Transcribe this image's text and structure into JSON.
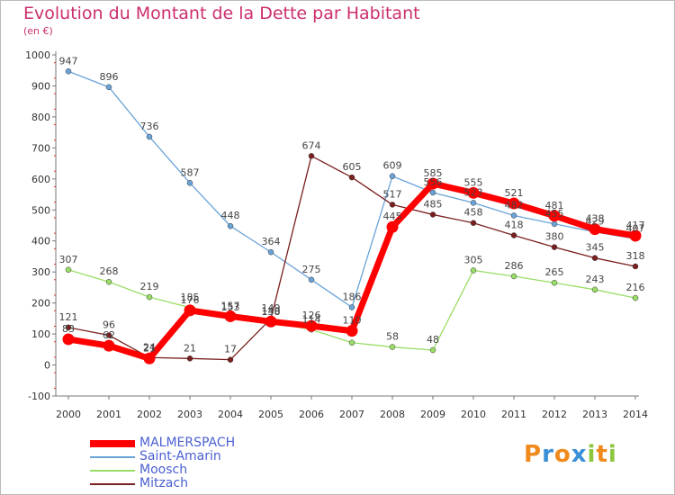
{
  "title": "Evolution du Montant de la Dette par Habitant",
  "subtitle": "(en €)",
  "colors": {
    "MALMERSPACH": "#ff0000",
    "Saint-Amarin": "#6aa3d8",
    "Moosch": "#99dd66",
    "Mitzach": "#7a1f1f",
    "axis": "#777777",
    "title": "#cc2f6e",
    "legend_text": "#4a5fd1"
  },
  "logo": {
    "letters": [
      "P",
      "r",
      "o",
      "x",
      "i",
      "t",
      "i"
    ],
    "colors": [
      "#f08a1c",
      "#3a8fd6",
      "#f08a1c",
      "#3a8fd6",
      "#8cc63f",
      "#f08a1c",
      "#8cc63f"
    ]
  },
  "chart_data": {
    "type": "line",
    "title": "Evolution du Montant de la Dette par Habitant",
    "subtitle": "(en €)",
    "x": [
      2000,
      2001,
      2002,
      2003,
      2004,
      2005,
      2006,
      2007,
      2008,
      2009,
      2010,
      2011,
      2012,
      2013,
      2014
    ],
    "ylim": [
      -100,
      1000
    ],
    "yticks": [
      -100,
      0,
      100,
      200,
      300,
      400,
      500,
      600,
      700,
      800,
      900,
      1000
    ],
    "grid": false,
    "legend_position": "bottom-left",
    "series": [
      {
        "name": "MALMERSPACH",
        "values": [
          83,
          62,
          21,
          176,
          157,
          140,
          126,
          110,
          445,
          585,
          555,
          521,
          481,
          438,
          417
        ],
        "labels": [
          "83",
          "62",
          "21",
          "176",
          "157",
          "140",
          "126",
          "110",
          "445",
          "585",
          "555",
          "521",
          "481",
          "438",
          "417"
        ]
      },
      {
        "name": "Saint-Amarin",
        "values": [
          947,
          896,
          736,
          587,
          448,
          364,
          275,
          186,
          609,
          556,
          523,
          482,
          455,
          429,
          407
        ],
        "labels": [
          "947",
          "896",
          "736",
          "587",
          "448",
          "364",
          "275",
          "186",
          "609",
          "556",
          "523",
          "482",
          "455",
          "429",
          "407"
        ]
      },
      {
        "name": "Moosch",
        "values": [
          307,
          268,
          219,
          185,
          153,
          138,
          114,
          72,
          58,
          48,
          305,
          286,
          265,
          243,
          216
        ],
        "labels": [
          "307",
          "268",
          "219",
          "185",
          "153",
          "138",
          "114",
          "",
          "58",
          "48",
          "305",
          "286",
          "265",
          "243",
          "216"
        ]
      },
      {
        "name": "Mitzach",
        "values": [
          121,
          96,
          24,
          21,
          17,
          149,
          674,
          605,
          517,
          485,
          458,
          418,
          380,
          345,
          318
        ],
        "labels": [
          "121",
          "96",
          "24",
          "21",
          "17",
          "149",
          "674",
          "605",
          "517",
          "485",
          "458",
          "418",
          "380",
          "345",
          "318"
        ]
      }
    ]
  }
}
